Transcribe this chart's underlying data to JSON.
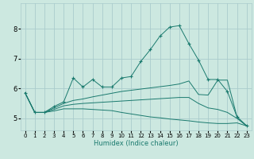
{
  "bg_color": "#cce8e0",
  "grid_color": "#aacccc",
  "line_color": "#1a7a6e",
  "xlabel": "Humidex (Indice chaleur)",
  "xlim": [
    -0.5,
    23.5
  ],
  "ylim": [
    4.6,
    8.85
  ],
  "yticks": [
    5,
    6,
    7,
    8
  ],
  "xticks": [
    0,
    1,
    2,
    3,
    4,
    5,
    6,
    7,
    8,
    9,
    10,
    11,
    12,
    13,
    14,
    15,
    16,
    17,
    18,
    19,
    20,
    21,
    22,
    23
  ],
  "series": [
    {
      "x": [
        0,
        1,
        2,
        3,
        4,
        5,
        6,
        7,
        8,
        9,
        10,
        11,
        12,
        13,
        14,
        15,
        16,
        17,
        18,
        19,
        20,
        21,
        22,
        23
      ],
      "y": [
        5.85,
        5.2,
        5.2,
        5.4,
        5.55,
        6.35,
        6.05,
        6.3,
        6.05,
        6.05,
        6.35,
        6.4,
        6.9,
        7.3,
        7.75,
        8.05,
        8.1,
        7.5,
        6.95,
        6.3,
        6.3,
        5.9,
        5.05,
        4.75
      ],
      "marker": true
    },
    {
      "x": [
        0,
        1,
        2,
        3,
        4,
        5,
        6,
        7,
        8,
        9,
        10,
        11,
        12,
        13,
        14,
        15,
        16,
        17,
        18,
        19,
        20,
        21,
        22,
        23
      ],
      "y": [
        5.85,
        5.2,
        5.2,
        5.35,
        5.5,
        5.6,
        5.65,
        5.72,
        5.78,
        5.84,
        5.9,
        5.94,
        5.98,
        6.02,
        6.06,
        6.1,
        6.15,
        6.25,
        5.8,
        5.78,
        6.28,
        6.28,
        5.05,
        4.75
      ],
      "marker": false
    },
    {
      "x": [
        0,
        1,
        2,
        3,
        4,
        5,
        6,
        7,
        8,
        9,
        10,
        11,
        12,
        13,
        14,
        15,
        16,
        17,
        18,
        19,
        20,
        21,
        22,
        23
      ],
      "y": [
        5.85,
        5.2,
        5.2,
        5.3,
        5.42,
        5.47,
        5.5,
        5.52,
        5.54,
        5.56,
        5.58,
        5.6,
        5.62,
        5.64,
        5.66,
        5.68,
        5.7,
        5.7,
        5.5,
        5.35,
        5.3,
        5.2,
        5.0,
        4.75
      ],
      "marker": false
    },
    {
      "x": [
        0,
        1,
        2,
        3,
        4,
        5,
        6,
        7,
        8,
        9,
        10,
        11,
        12,
        13,
        14,
        15,
        16,
        17,
        18,
        19,
        20,
        21,
        22,
        23
      ],
      "y": [
        5.85,
        5.2,
        5.2,
        5.25,
        5.32,
        5.32,
        5.32,
        5.3,
        5.28,
        5.26,
        5.2,
        5.15,
        5.1,
        5.05,
        5.02,
        4.98,
        4.95,
        4.92,
        4.88,
        4.85,
        4.83,
        4.83,
        4.85,
        4.75
      ],
      "marker": false
    }
  ]
}
